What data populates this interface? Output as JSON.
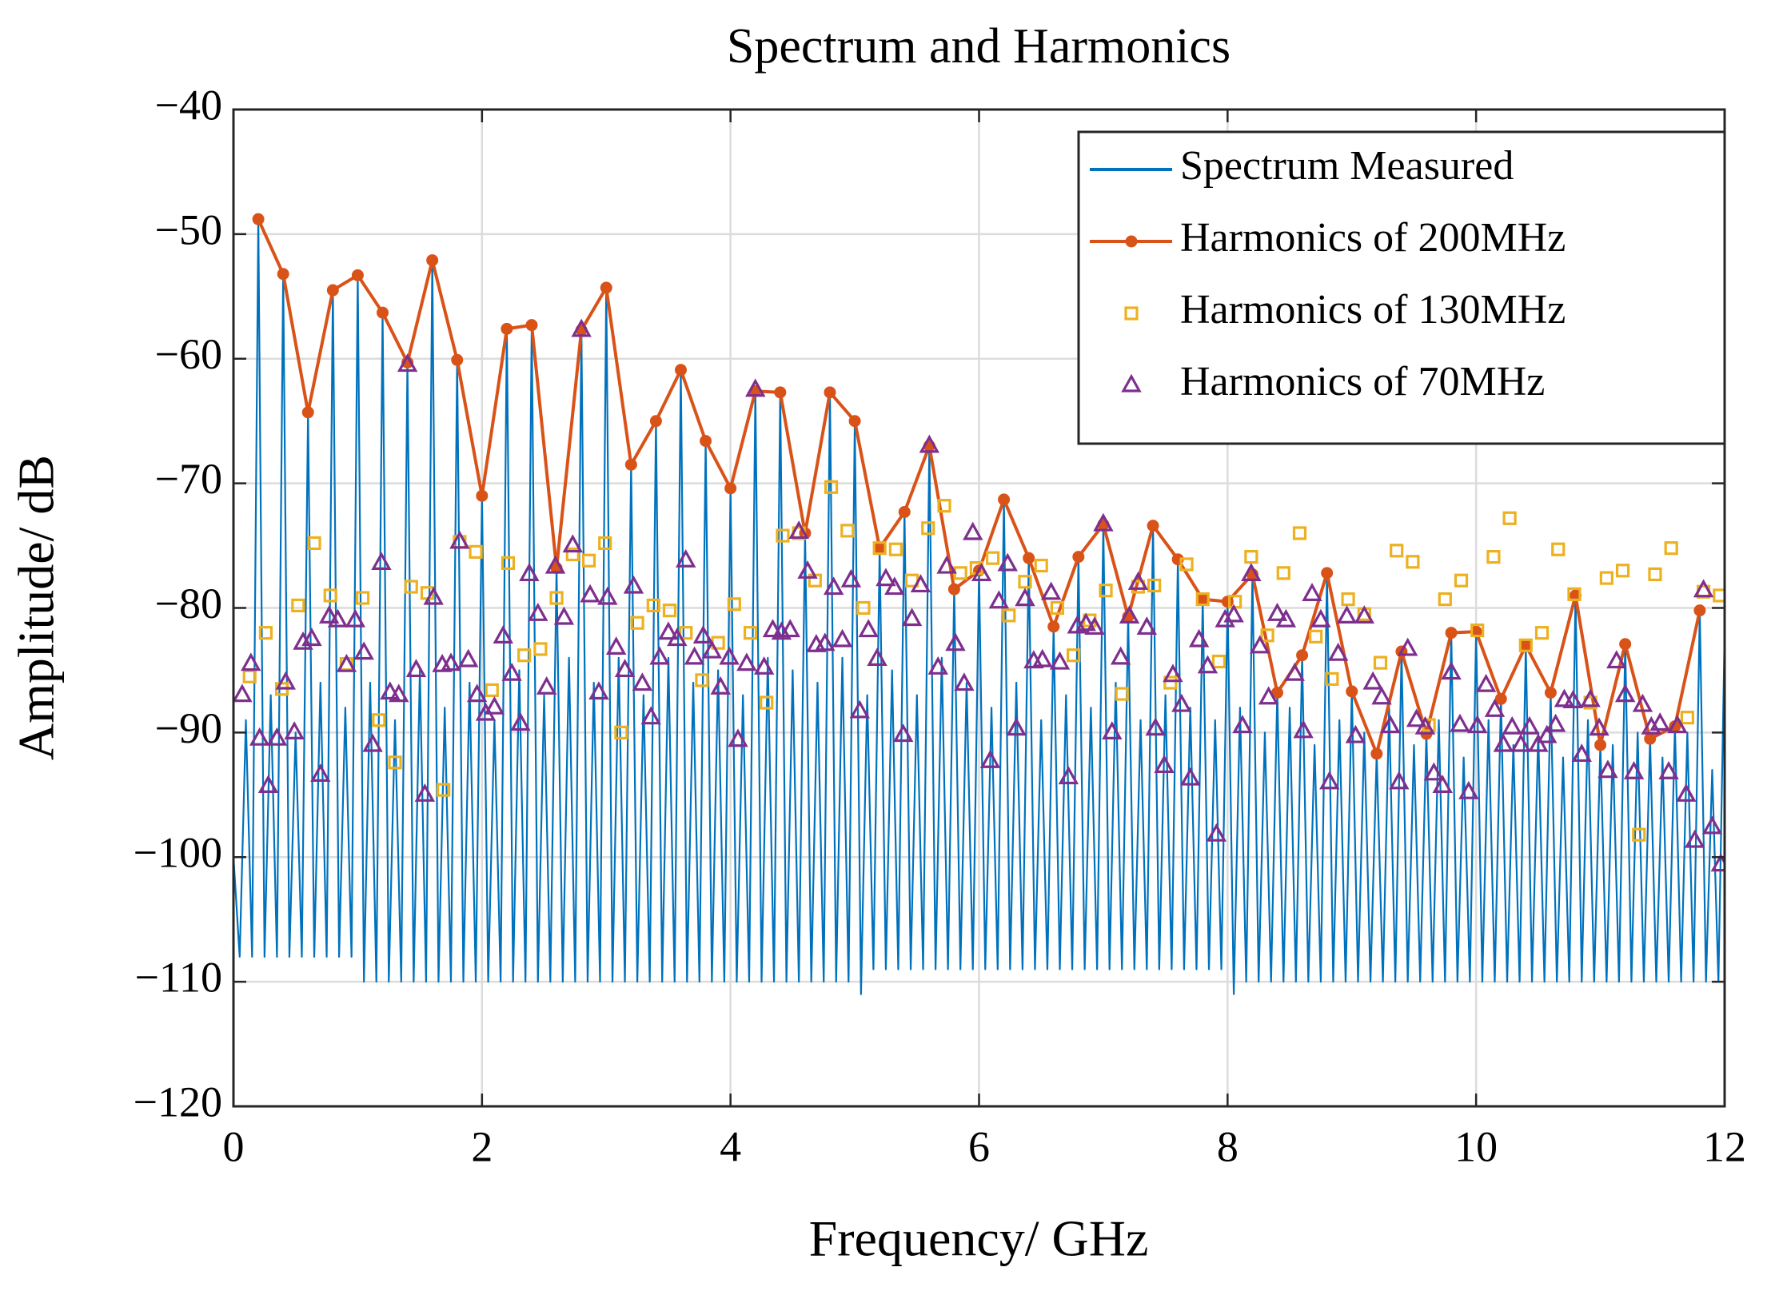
{
  "chart_data": {
    "type": "line",
    "title": "Spectrum and Harmonics",
    "xlabel": "Frequency/ GHz",
    "ylabel": "Amplitude/ dB",
    "xlim": [
      0,
      12
    ],
    "xticks": [
      0,
      2,
      4,
      6,
      8,
      10,
      12
    ],
    "ylim": [
      -120,
      -40
    ],
    "yticks": [
      {
        "value": -120,
        "label": "−120"
      },
      {
        "value": -110,
        "label": "−110"
      },
      {
        "value": -100,
        "label": "−100"
      },
      {
        "value": -90,
        "label": "−90"
      },
      {
        "value": -80,
        "label": "−80"
      },
      {
        "value": -70,
        "label": "−70"
      },
      {
        "value": -60,
        "label": "−60"
      },
      {
        "value": -50,
        "label": "−50"
      },
      {
        "value": -40,
        "label": "−40"
      }
    ],
    "grid": true,
    "legend": "upper right",
    "series": [
      {
        "name": "Spectrum Measured",
        "color": "#0072BD",
        "marker": "none",
        "line": true,
        "x": [
          0,
          0.05,
          0.1,
          0.15,
          0.2,
          0.25,
          0.3,
          0.35,
          0.4,
          0.45,
          0.5,
          0.55,
          0.6,
          0.65,
          0.7,
          0.75,
          0.8,
          0.85,
          0.9,
          0.95,
          1,
          1.05,
          1.1,
          1.15,
          1.2,
          1.25,
          1.3,
          1.35,
          1.4,
          1.45,
          1.5,
          1.55,
          1.6,
          1.65,
          1.7,
          1.75,
          1.8,
          1.85,
          1.9,
          1.95,
          2,
          2.05,
          2.1,
          2.15,
          2.2,
          2.25,
          2.3,
          2.35,
          2.4,
          2.45,
          2.5,
          2.55,
          2.6,
          2.65,
          2.7,
          2.75,
          2.8,
          2.85,
          2.9,
          2.95,
          3,
          3.05,
          3.1,
          3.15,
          3.2,
          3.25,
          3.3,
          3.35,
          3.4,
          3.45,
          3.5,
          3.55,
          3.6,
          3.65,
          3.7,
          3.75,
          3.8,
          3.85,
          3.9,
          3.95,
          4,
          4.05,
          4.1,
          4.15,
          4.2,
          4.25,
          4.3,
          4.35,
          4.4,
          4.45,
          4.5,
          4.55,
          4.6,
          4.65,
          4.7,
          4.75,
          4.8,
          4.85,
          4.9,
          4.95,
          5,
          5.05,
          5.1,
          5.15,
          5.2,
          5.25,
          5.3,
          5.35,
          5.4,
          5.45,
          5.5,
          5.55,
          5.6,
          5.65,
          5.7,
          5.75,
          5.8,
          5.85,
          5.9,
          5.95,
          6,
          6.05,
          6.1,
          6.15,
          6.2,
          6.25,
          6.3,
          6.35,
          6.4,
          6.45,
          6.5,
          6.55,
          6.6,
          6.65,
          6.7,
          6.75,
          6.8,
          6.85,
          6.9,
          6.95,
          7,
          7.05,
          7.1,
          7.15,
          7.2,
          7.25,
          7.3,
          7.35,
          7.4,
          7.45,
          7.5,
          7.55,
          7.6,
          7.65,
          7.7,
          7.75,
          7.8,
          7.85,
          7.9,
          7.95,
          8,
          8.05,
          8.1,
          8.15,
          8.2,
          8.25,
          8.3,
          8.35,
          8.4,
          8.45,
          8.5,
          8.55,
          8.6,
          8.65,
          8.7,
          8.75,
          8.8,
          8.85,
          8.9,
          8.95,
          9,
          9.05,
          9.1,
          9.15,
          9.2,
          9.25,
          9.3,
          9.35,
          9.4,
          9.45,
          9.5,
          9.55,
          9.6,
          9.65,
          9.7,
          9.75,
          9.8,
          9.85,
          9.9,
          9.95,
          10,
          10.05,
          10.1,
          10.15,
          10.2,
          10.25,
          10.3,
          10.35,
          10.4,
          10.45,
          10.5,
          10.55,
          10.6,
          10.65,
          10.7,
          10.75,
          10.8,
          10.85,
          10.9,
          10.95,
          11,
          11.05,
          11.1,
          11.15,
          11.2,
          11.25,
          11.3,
          11.35,
          11.4,
          11.45,
          11.5,
          11.55,
          11.6,
          11.65,
          11.7,
          11.75,
          11.8,
          11.85,
          11.9,
          11.95,
          12
        ],
        "values": [
          -100,
          -108,
          -89,
          -108,
          -48.8,
          -108,
          -87,
          -108,
          -53.2,
          -108,
          -90,
          -108,
          -64.3,
          -108,
          -86,
          -108,
          -54.5,
          -108,
          -88,
          -108,
          -53.3,
          -110,
          -86,
          -110,
          -56.3,
          -110,
          -89,
          -110,
          -60.3,
          -110,
          -85,
          -110,
          -52.1,
          -110,
          -88,
          -110,
          -60.1,
          -110,
          -86,
          -110,
          -71,
          -110,
          -89,
          -110,
          -57.6,
          -110,
          -85,
          -110,
          -57.3,
          -110,
          -87,
          -110,
          -76.8,
          -110,
          -84,
          -110,
          -57.7,
          -110,
          -86,
          -110,
          -54.3,
          -110,
          -84,
          -110,
          -68.5,
          -110,
          -87,
          -110,
          -65,
          -110,
          -84,
          -110,
          -60.9,
          -110,
          -86,
          -110,
          -66.6,
          -110,
          -85,
          -110,
          -70.4,
          -110,
          -87,
          -110,
          -62.6,
          -110,
          -84,
          -110,
          -62.7,
          -110,
          -85,
          -110,
          -74,
          -110,
          -86,
          -110,
          -62.7,
          -110,
          -84,
          -110,
          -65,
          -111,
          -87,
          -109,
          -75.2,
          -109,
          -85,
          -109,
          -72.3,
          -109,
          -87,
          -109,
          -67,
          -109,
          -84,
          -109,
          -78.5,
          -109,
          -86,
          -109,
          -77,
          -109,
          -88,
          -109,
          -71.3,
          -109,
          -86,
          -109,
          -76,
          -109,
          -89,
          -109,
          -81.5,
          -109,
          -87,
          -109,
          -75.9,
          -109,
          -88,
          -109,
          -73.3,
          -109,
          -86,
          -109,
          -80.7,
          -109,
          -89,
          -109,
          -73.4,
          -109,
          -87,
          -109,
          -76.1,
          -109,
          -88,
          -109,
          -79.3,
          -109,
          -89,
          -109,
          -79.5,
          -111,
          -88,
          -110,
          -77.3,
          -110,
          -90,
          -110,
          -86.8,
          -110,
          -88,
          -110,
          -83.8,
          -110,
          -91,
          -110,
          -77.2,
          -110,
          -89,
          -110,
          -86.7,
          -110,
          -90,
          -110,
          -91.7,
          -110,
          -88,
          -110,
          -83.5,
          -110,
          -91,
          -110,
          -90.1,
          -110,
          -89,
          -110,
          -82,
          -110,
          -92,
          -110,
          -81.9,
          -110,
          -89,
          -110,
          -87.3,
          -110,
          -91,
          -110,
          -83,
          -110,
          -90,
          -110,
          -86.8,
          -110,
          -92,
          -110,
          -79,
          -110,
          -89,
          -110,
          -91,
          -110,
          -91,
          -110,
          -82.9,
          -110,
          -90,
          -110,
          -90.5,
          -110,
          -92,
          -110,
          -89.5,
          -110,
          -90,
          -110,
          -80.2,
          -110,
          -93,
          -110,
          -82
        ]
      },
      {
        "name": "Harmonics of 200MHz",
        "color": "#D95319",
        "marker": "o",
        "line": true,
        "x": [
          0.2,
          0.4,
          0.6,
          0.8,
          1,
          1.2,
          1.4,
          1.6,
          1.8,
          2,
          2.2,
          2.4,
          2.6,
          2.8,
          3,
          3.2,
          3.4,
          3.6,
          3.8,
          4,
          4.2,
          4.4,
          4.6,
          4.8,
          5,
          5.2,
          5.4,
          5.6,
          5.8,
          6,
          6.2,
          6.4,
          6.6,
          6.8,
          7,
          7.2,
          7.4,
          7.6,
          7.8,
          8,
          8.2,
          8.4,
          8.6,
          8.8,
          9,
          9.2,
          9.4,
          9.6,
          9.8,
          10,
          10.2,
          10.4,
          10.6,
          10.8,
          11,
          11.2,
          11.4,
          11.6,
          11.8
        ],
        "values": [
          -48.8,
          -53.2,
          -64.3,
          -54.5,
          -53.3,
          -56.3,
          -60.3,
          -52.1,
          -60.1,
          -71,
          -57.6,
          -57.3,
          -76.8,
          -57.7,
          -54.3,
          -68.5,
          -65,
          -60.9,
          -66.6,
          -70.4,
          -62.6,
          -62.7,
          -74,
          -62.7,
          -65,
          -75.2,
          -72.3,
          -67,
          -78.5,
          -77,
          -71.3,
          -76,
          -81.5,
          -75.9,
          -73.3,
          -80.7,
          -73.4,
          -76.1,
          -79.3,
          -79.5,
          -77.3,
          -86.8,
          -83.8,
          -77.2,
          -86.7,
          -91.7,
          -83.5,
          -90.1,
          -82,
          -81.9,
          -87.3,
          -83,
          -86.8,
          -79,
          -91,
          -82.9,
          -90.5,
          -89.5,
          -80.2
        ]
      },
      {
        "name": "Harmonics of 130MHz",
        "color": "#EDB120",
        "marker": "s",
        "line": false,
        "x": [
          0.13,
          0.26,
          0.39,
          0.52,
          0.65,
          0.78,
          0.91,
          1.04,
          1.17,
          1.3,
          1.43,
          1.56,
          1.69,
          1.82,
          1.95,
          2.08,
          2.21,
          2.34,
          2.47,
          2.6,
          2.73,
          2.86,
          2.99,
          3.12,
          3.25,
          3.38,
          3.51,
          3.64,
          3.77,
          3.9,
          4.03,
          4.16,
          4.29,
          4.42,
          4.55,
          4.68,
          4.81,
          4.94,
          5.07,
          5.2,
          5.33,
          5.46,
          5.59,
          5.72,
          5.85,
          5.98,
          6.11,
          6.24,
          6.37,
          6.5,
          6.63,
          6.76,
          6.89,
          7.02,
          7.15,
          7.28,
          7.41,
          7.54,
          7.67,
          7.8,
          7.93,
          8.06,
          8.19,
          8.32,
          8.45,
          8.58,
          8.71,
          8.84,
          8.97,
          9.1,
          9.23,
          9.36,
          9.49,
          9.62,
          9.75,
          9.88,
          10.01,
          10.14,
          10.27,
          10.4,
          10.53,
          10.66,
          10.79,
          10.92,
          11.05,
          11.18,
          11.31,
          11.44,
          11.57,
          11.7,
          11.83,
          11.96
        ],
        "values": [
          -85.5,
          -82,
          -86.5,
          -79.8,
          -74.8,
          -79,
          -84.5,
          -79.2,
          -89,
          -92.4,
          -78.3,
          -78.8,
          -94.6,
          -74.7,
          -75.5,
          -86.6,
          -76.4,
          -83.8,
          -83.3,
          -79.2,
          -75.7,
          -76.2,
          -74.8,
          -90,
          -81.2,
          -79.8,
          -80.2,
          -82,
          -85.8,
          -82.8,
          -79.7,
          -82,
          -87.6,
          -74.2,
          -74,
          -77.8,
          -70.3,
          -73.8,
          -80,
          -75.2,
          -75.3,
          -77.8,
          -73.6,
          -71.8,
          -77.2,
          -76.8,
          -76,
          -80.6,
          -77.9,
          -76.6,
          -80,
          -83.8,
          -81,
          -78.6,
          -86.9,
          -78.3,
          -78.2,
          -86,
          -76.5,
          -79.3,
          -84.3,
          -79.5,
          -75.9,
          -82.2,
          -77.2,
          -74,
          -82.3,
          -85.7,
          -79.3,
          -80.5,
          -84.4,
          -75.4,
          -76.3,
          -89.4,
          -79.3,
          -77.8,
          -81.8,
          -75.9,
          -72.8,
          -83,
          -82,
          -75.3,
          -78.9,
          -87.6,
          -77.6,
          -77,
          -98.2,
          -77.3,
          -75.2,
          -88.8,
          -78.7,
          -79
        ]
      },
      {
        "name": "Harmonics of 70MHz",
        "color": "#7E2F8E",
        "marker": "^",
        "line": false,
        "x": [
          0.07,
          0.14,
          0.21,
          0.28,
          0.35,
          0.42,
          0.49,
          0.56,
          0.63,
          0.7,
          0.77,
          0.84,
          0.91,
          0.98,
          1.05,
          1.12,
          1.19,
          1.26,
          1.33,
          1.4,
          1.47,
          1.54,
          1.61,
          1.68,
          1.75,
          1.82,
          1.89,
          1.96,
          2.03,
          2.1,
          2.17,
          2.24,
          2.31,
          2.38,
          2.45,
          2.52,
          2.59,
          2.66,
          2.73,
          2.8,
          2.87,
          2.94,
          3.01,
          3.08,
          3.15,
          3.22,
          3.29,
          3.36,
          3.43,
          3.5,
          3.57,
          3.64,
          3.71,
          3.78,
          3.85,
          3.92,
          3.99,
          4.06,
          4.13,
          4.2,
          4.27,
          4.34,
          4.41,
          4.48,
          4.55,
          4.62,
          4.69,
          4.76,
          4.83,
          4.9,
          4.97,
          5.04,
          5.11,
          5.18,
          5.25,
          5.32,
          5.39,
          5.46,
          5.53,
          5.6,
          5.67,
          5.74,
          5.81,
          5.88,
          5.95,
          6.02,
          6.09,
          6.16,
          6.23,
          6.3,
          6.37,
          6.44,
          6.51,
          6.58,
          6.65,
          6.72,
          6.79,
          6.86,
          6.93,
          7,
          7.07,
          7.14,
          7.21,
          7.28,
          7.35,
          7.42,
          7.49,
          7.56,
          7.63,
          7.7,
          7.77,
          7.84,
          7.91,
          7.98,
          8.05,
          8.12,
          8.19,
          8.26,
          8.33,
          8.4,
          8.47,
          8.54,
          8.61,
          8.68,
          8.75,
          8.82,
          8.89,
          8.96,
          9.03,
          9.1,
          9.17,
          9.24,
          9.31,
          9.38,
          9.45,
          9.52,
          9.59,
          9.66,
          9.73,
          9.8,
          9.87,
          9.94,
          10.01,
          10.08,
          10.15,
          10.22,
          10.29,
          10.36,
          10.43,
          10.5,
          10.57,
          10.64,
          10.71,
          10.78,
          10.85,
          10.92,
          10.99,
          11.06,
          11.13,
          11.2,
          11.27,
          11.34,
          11.41,
          11.48,
          11.55,
          11.62,
          11.69,
          11.76,
          11.83,
          11.9,
          11.97
        ],
        "values": [
          -87,
          -84.5,
          -90.5,
          -94.3,
          -90.5,
          -86,
          -90,
          -82.8,
          -82.5,
          -93.4,
          -80.7,
          -81,
          -84.6,
          -81,
          -83.6,
          -91,
          -76.4,
          -86.8,
          -87,
          -60.5,
          -85,
          -95,
          -79.2,
          -84.6,
          -84.5,
          -74.7,
          -84.2,
          -87,
          -88.5,
          -88,
          -82.3,
          -85.3,
          -89.3,
          -77.3,
          -80.5,
          -86.4,
          -76.7,
          -80.8,
          -75,
          -57.7,
          -79,
          -86.8,
          -79.2,
          -83.2,
          -85,
          -78.3,
          -86.1,
          -88.8,
          -84,
          -82,
          -82.5,
          -76.2,
          -84,
          -82.3,
          -83.5,
          -86.4,
          -84,
          -90.6,
          -84.5,
          -62.5,
          -84.8,
          -81.8,
          -82,
          -81.8,
          -73.9,
          -77.1,
          -83,
          -82.9,
          -78.4,
          -82.6,
          -77.8,
          -88.3,
          -81.8,
          -84.1,
          -77.7,
          -78.4,
          -90.2,
          -80.9,
          -78.2,
          -67,
          -84.8,
          -76.7,
          -82.9,
          -86.1,
          -74,
          -77.3,
          -92.3,
          -79.5,
          -76.5,
          -89.7,
          -79.3,
          -84.3,
          -84.2,
          -78.8,
          -84.4,
          -93.6,
          -81.5,
          -81.3,
          -81.6,
          -73.3,
          -90,
          -84,
          -80.7,
          -78,
          -81.6,
          -89.7,
          -92.7,
          -85.4,
          -87.8,
          -93.7,
          -82.6,
          -84.7,
          -98.2,
          -81,
          -80.6,
          -89.5,
          -77.3,
          -83.1,
          -87.2,
          -80.5,
          -81,
          -85.3,
          -89.9,
          -78.9,
          -81,
          -94,
          -83.7,
          -80.7,
          -90.3,
          -80.7,
          -86,
          -87.2,
          -89.5,
          -94,
          -83.3,
          -89,
          -89.6,
          -93.3,
          -94.3,
          -85.2,
          -89.4,
          -94.8,
          -89.5,
          -86.2,
          -88.2,
          -91,
          -89.6,
          -91,
          -89.6,
          -91,
          -90.3,
          -89.4,
          -87.4,
          -87.5,
          -91.8,
          -87.4,
          -89.7,
          -93.1,
          -84.3,
          -87,
          -93.2,
          -87.8,
          -89.6,
          -89.3,
          -93.2,
          -89.5,
          -95,
          -98.7,
          -78.6,
          -97.6,
          -100.6
        ]
      }
    ]
  }
}
